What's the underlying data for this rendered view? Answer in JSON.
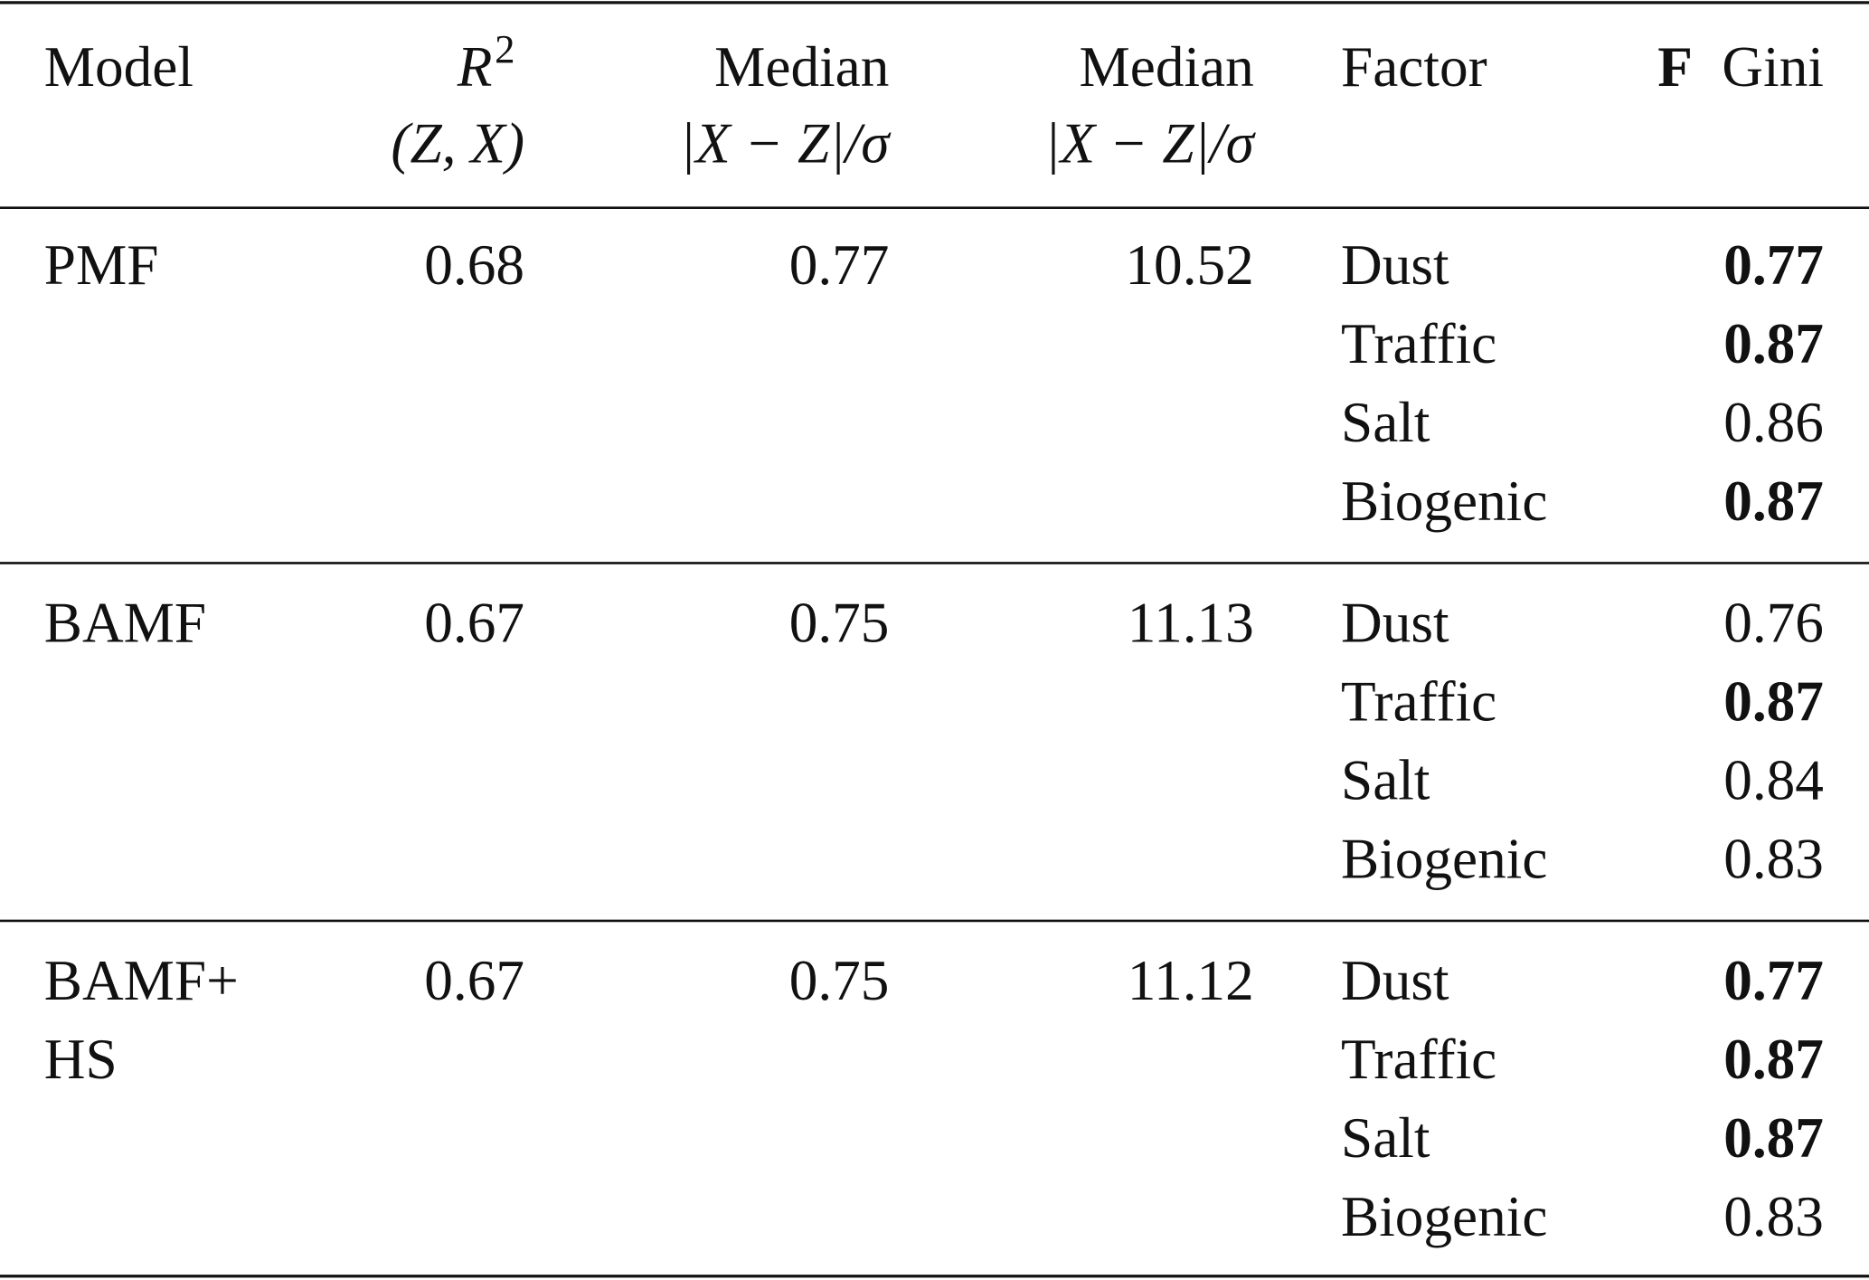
{
  "header": {
    "model": "Model",
    "r2": {
      "symbol": "R",
      "sup": "2",
      "sub": "(Z, X)"
    },
    "median1": {
      "label": "Median",
      "formula": "|X − Z|/σ"
    },
    "median2": {
      "label": "Median",
      "formula": "|X − Z|/σ"
    },
    "factor": "Factor",
    "gini": {
      "bold": "F",
      "label": "Gini"
    }
  },
  "groups": [
    {
      "model": [
        "PMF"
      ],
      "r2": 0.68,
      "median1": 0.77,
      "median2": 10.52,
      "factors": [
        {
          "name": "Dust",
          "gini": 0.77,
          "bold": true
        },
        {
          "name": "Traffic",
          "gini": 0.87,
          "bold": true
        },
        {
          "name": "Salt",
          "gini": 0.86,
          "bold": false
        },
        {
          "name": "Biogenic",
          "gini": 0.87,
          "bold": true
        }
      ]
    },
    {
      "model": [
        "BAMF"
      ],
      "r2": 0.67,
      "median1": 0.75,
      "median2": 11.13,
      "factors": [
        {
          "name": "Dust",
          "gini": 0.76,
          "bold": false
        },
        {
          "name": "Traffic",
          "gini": 0.87,
          "bold": true
        },
        {
          "name": "Salt",
          "gini": 0.84,
          "bold": false
        },
        {
          "name": "Biogenic",
          "gini": 0.83,
          "bold": false
        }
      ]
    },
    {
      "model": [
        "BAMF+",
        "HS"
      ],
      "r2": 0.67,
      "median1": 0.75,
      "median2": 11.12,
      "factors": [
        {
          "name": "Dust",
          "gini": 0.77,
          "bold": true
        },
        {
          "name": "Traffic",
          "gini": 0.87,
          "bold": true
        },
        {
          "name": "Salt",
          "gini": 0.87,
          "bold": true
        },
        {
          "name": "Biogenic",
          "gini": 0.83,
          "bold": false
        }
      ]
    }
  ]
}
